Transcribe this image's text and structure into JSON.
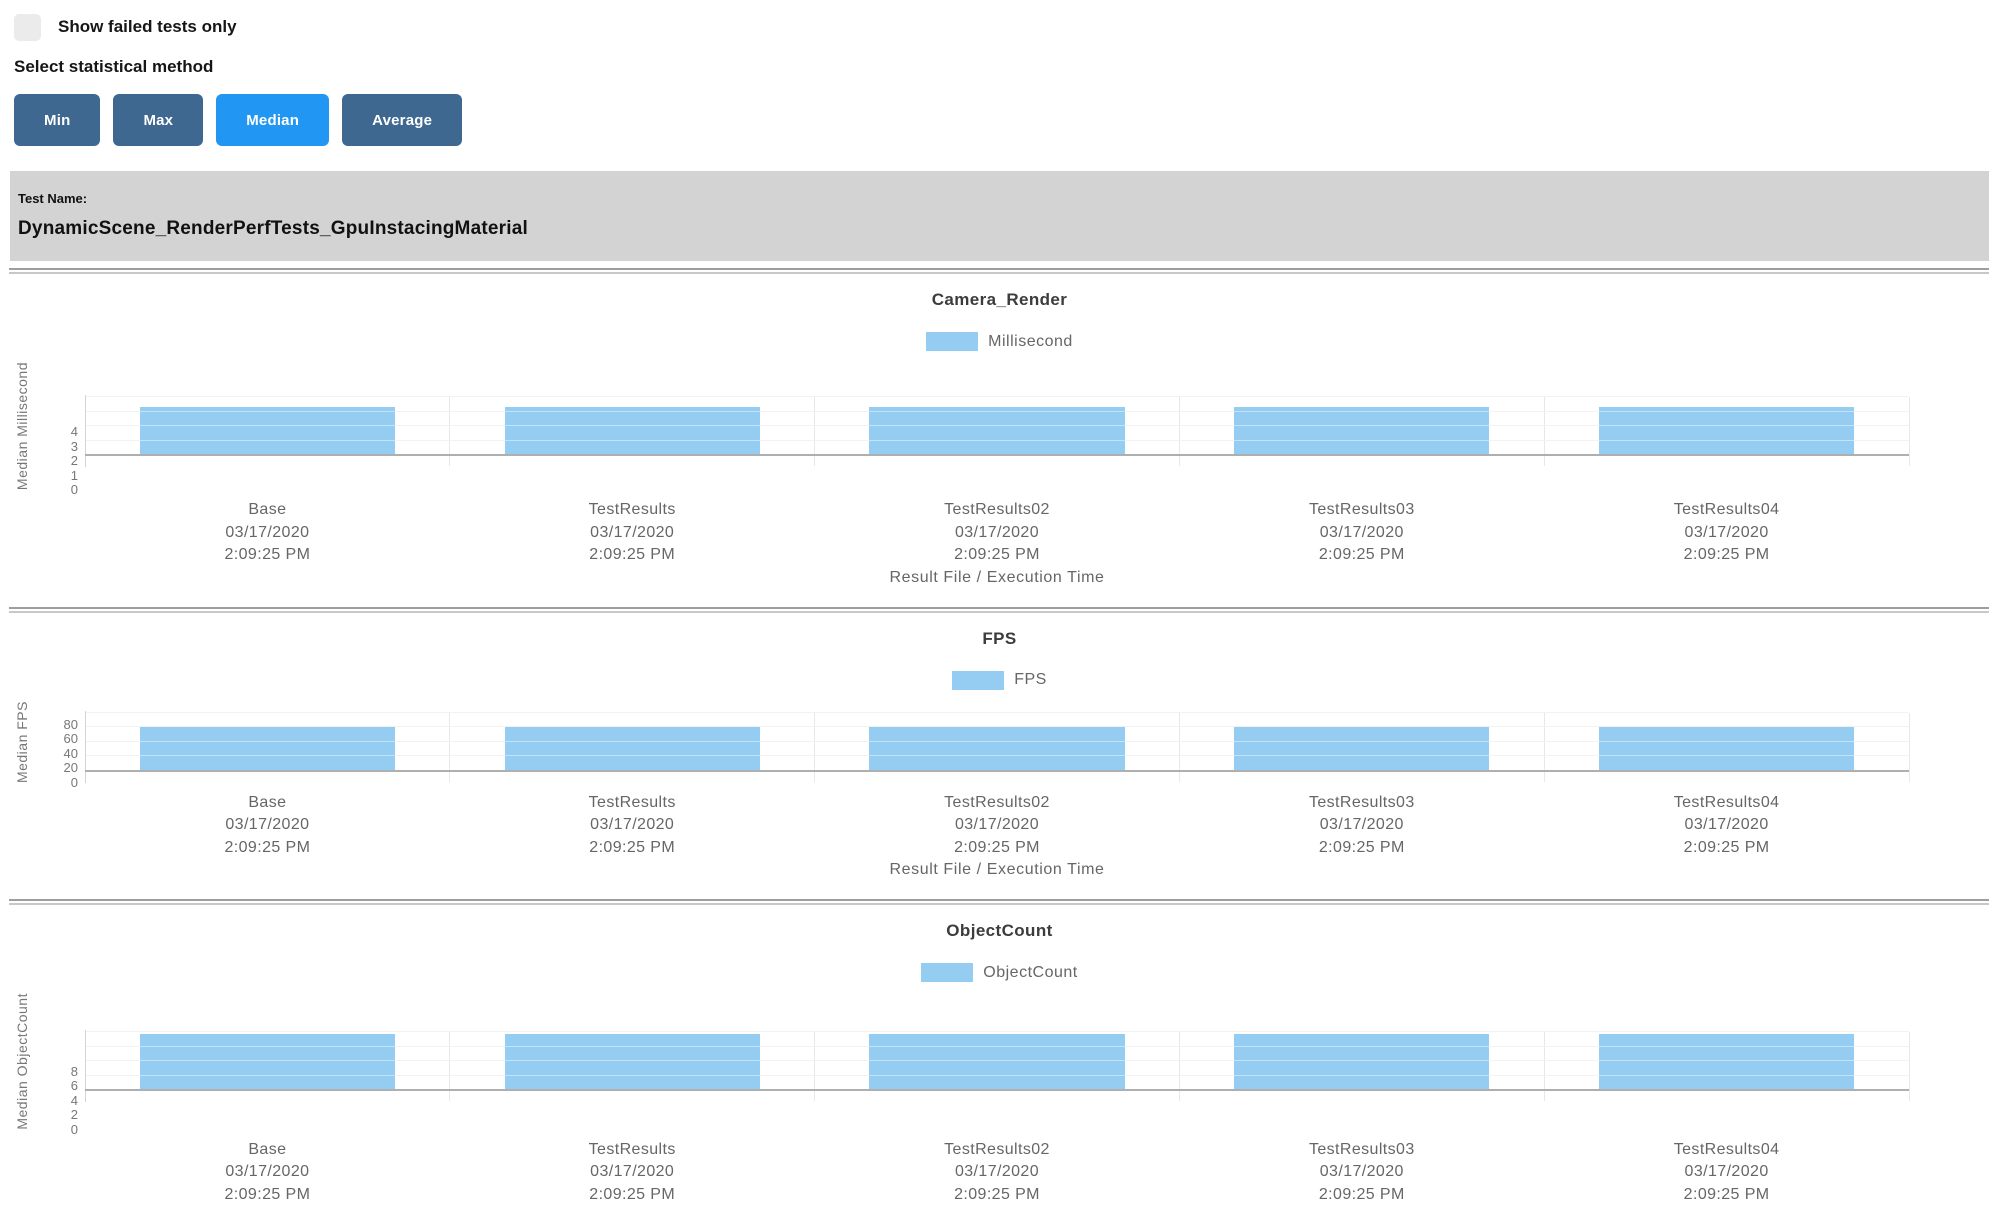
{
  "controls": {
    "show_failed_label": "Show failed tests only",
    "stat_method_label": "Select statistical method",
    "buttons": [
      {
        "label": "Min",
        "active": false
      },
      {
        "label": "Max",
        "active": false
      },
      {
        "label": "Median",
        "active": true
      },
      {
        "label": "Average",
        "active": false
      }
    ]
  },
  "test_banner": {
    "label": "Test Name:",
    "name": "DynamicScene_RenderPerfTests_GpuInstacingMaterial"
  },
  "colors": {
    "bar": "#94CDF1",
    "button": "#3E6890",
    "button_active": "#2196F3",
    "banner_bg": "#D3D3D3"
  },
  "chart_data": [
    {
      "type": "bar",
      "title": "Camera_Render",
      "legend": "Millisecond",
      "ylabel": "Median Millisecond",
      "xlabel": "Result File / Execution Time",
      "ylim": [
        0,
        4
      ],
      "yticks": [
        0,
        1,
        2,
        3,
        4
      ],
      "categories": [
        {
          "name": "Base",
          "date": "03/17/2020",
          "time": "2:09:25 PM"
        },
        {
          "name": "TestResults",
          "date": "03/17/2020",
          "time": "2:09:25 PM"
        },
        {
          "name": "TestResults02",
          "date": "03/17/2020",
          "time": "2:09:25 PM"
        },
        {
          "name": "TestResults03",
          "date": "03/17/2020",
          "time": "2:09:25 PM"
        },
        {
          "name": "TestResults04",
          "date": "03/17/2020",
          "time": "2:09:25 PM"
        }
      ],
      "values": [
        3.3,
        3.3,
        3.3,
        3.3,
        3.3
      ],
      "grid": true,
      "legend_position": "top"
    },
    {
      "type": "bar",
      "title": "FPS",
      "legend": "FPS",
      "ylabel": "Median FPS",
      "xlabel": "Result File / Execution Time",
      "ylim": [
        0,
        80
      ],
      "yticks": [
        0,
        20,
        40,
        60,
        80
      ],
      "categories": [
        {
          "name": "Base",
          "date": "03/17/2020",
          "time": "2:09:25 PM"
        },
        {
          "name": "TestResults",
          "date": "03/17/2020",
          "time": "2:09:25 PM"
        },
        {
          "name": "TestResults02",
          "date": "03/17/2020",
          "time": "2:09:25 PM"
        },
        {
          "name": "TestResults03",
          "date": "03/17/2020",
          "time": "2:09:25 PM"
        },
        {
          "name": "TestResults04",
          "date": "03/17/2020",
          "time": "2:09:25 PM"
        }
      ],
      "values": [
        60,
        60,
        60,
        60,
        60
      ],
      "grid": true,
      "legend_position": "top"
    },
    {
      "type": "bar",
      "title": "ObjectCount",
      "legend": "ObjectCount",
      "ylabel": "Median ObjectCount",
      "xlabel": "",
      "ylim": [
        0,
        8
      ],
      "yticks": [
        0,
        2,
        4,
        6,
        8
      ],
      "categories": [
        {
          "name": "Base",
          "date": "03/17/2020",
          "time": "2:09:25 PM"
        },
        {
          "name": "TestResults",
          "date": "03/17/2020",
          "time": "2:09:25 PM"
        },
        {
          "name": "TestResults02",
          "date": "03/17/2020",
          "time": "2:09:25 PM"
        },
        {
          "name": "TestResults03",
          "date": "03/17/2020",
          "time": "2:09:25 PM"
        },
        {
          "name": "TestResults04",
          "date": "03/17/2020",
          "time": "2:09:25 PM"
        }
      ],
      "values": [
        7.8,
        7.8,
        7.8,
        7.8,
        7.8
      ],
      "grid": true,
      "legend_position": "top"
    }
  ]
}
